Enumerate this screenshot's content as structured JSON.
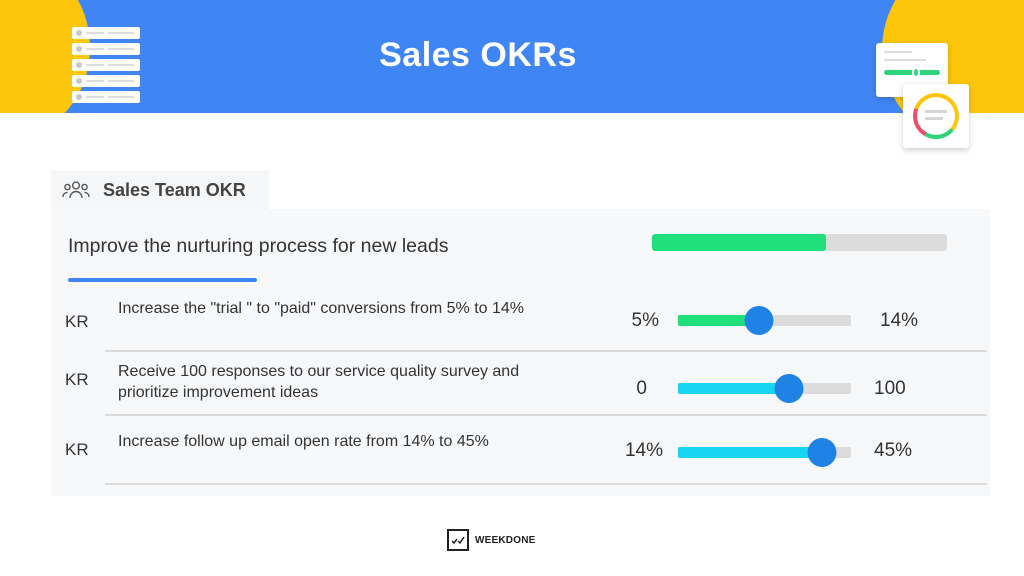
{
  "header": {
    "title": "Sales OKRs",
    "background_color": "#3f86f4",
    "accent_color": "#fdc60b"
  },
  "team": {
    "label": "Sales Team OKR",
    "icon": "team-icon"
  },
  "objective": {
    "text": "Improve the nurturing process for new leads",
    "progress": 0.59,
    "progress_color": "#1fe07a"
  },
  "key_results": [
    {
      "tag": "KR",
      "text": "Increase the \"trial \" to \"paid\" conversions from 5% to 14%",
      "start": "5%",
      "target": "14%",
      "progress": 0.47,
      "color": "#1fe07a"
    },
    {
      "tag": "KR",
      "text": "Receive 100 responses to our service quality survey and prioritize improvement ideas",
      "start": "0",
      "target": "100",
      "progress": 0.64,
      "color": "#17d5f2"
    },
    {
      "tag": "KR",
      "text": "Increase follow up email open rate from 14% to 45%",
      "start": "14%",
      "target": "45%",
      "progress": 0.83,
      "color": "#17d5f2"
    }
  ],
  "footer": {
    "brand": "WEEKDONE",
    "icon": "weekdone-logo-icon"
  }
}
